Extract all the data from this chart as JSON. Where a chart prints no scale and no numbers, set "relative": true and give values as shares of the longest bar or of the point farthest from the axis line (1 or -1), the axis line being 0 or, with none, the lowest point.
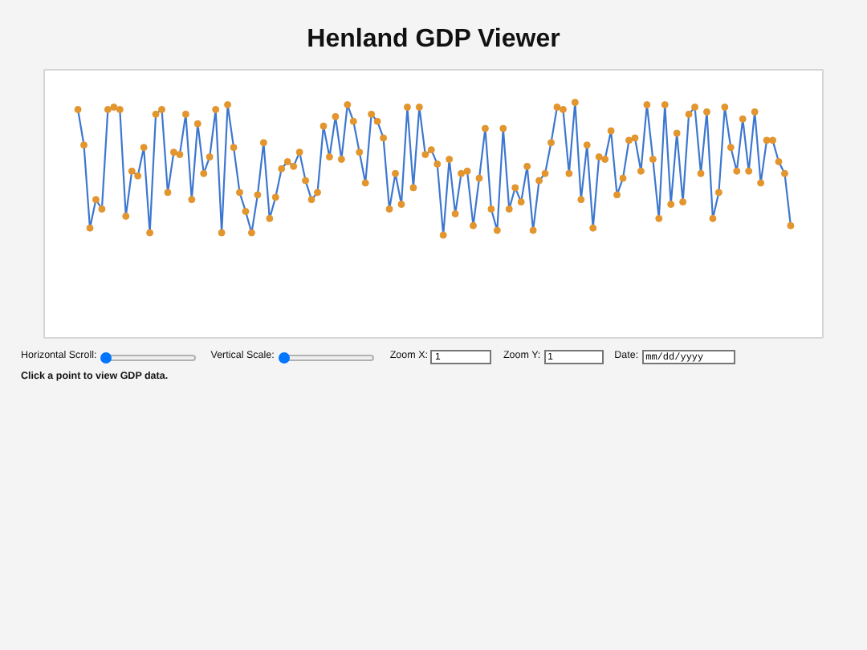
{
  "chart_data": {
    "type": "line",
    "title": "Henland GDP Viewer",
    "annotations": [
      "Horizontal Scroll:",
      "Vertical Scale:",
      "Zoom X:",
      "1",
      "Zoom Y:",
      "1",
      "Date:",
      "mm/dd/yyyy",
      "Click a point to view GDP data."
    ],
    "categories": [
      null,
      null,
      null,
      null,
      null,
      null,
      null,
      null,
      null,
      null,
      null,
      null,
      null,
      null,
      null,
      null,
      null,
      null,
      null,
      null,
      null,
      null,
      null,
      null,
      null,
      null,
      null,
      null,
      null,
      null,
      null,
      null,
      null,
      null,
      null,
      null,
      null,
      null,
      null,
      null,
      null,
      null,
      null,
      null,
      null,
      null,
      null,
      null,
      null,
      null,
      null,
      null,
      null,
      null,
      null,
      null,
      null,
      null,
      null,
      null,
      null,
      null,
      null,
      null,
      null,
      null,
      null,
      null,
      null,
      null,
      null,
      null,
      null,
      null,
      null,
      null,
      null,
      null,
      null,
      null,
      null,
      null,
      null,
      null,
      null,
      null,
      null,
      null,
      null,
      null,
      null,
      null,
      null,
      null,
      null,
      null,
      null,
      null,
      null,
      null,
      null,
      null,
      null,
      null,
      null,
      null,
      null,
      null,
      null,
      null,
      null,
      null,
      null,
      null,
      null,
      null,
      null,
      null,
      null,
      null
    ],
    "relative": true,
    "tick_labels": false,
    "marker": "circle",
    "line_style": "solid",
    "series": [
      {
        "color": "#3d77cf",
        "colors": [
          "#e3952e",
          "#e3952e",
          "#e3952e",
          "#e3952e",
          "#e3952e",
          "#e3952e",
          "#e3952e",
          "#e3952e",
          "#e3952e",
          "#e3952e",
          "#e3952e",
          "#e3952e",
          "#e3952e",
          "#e3952e",
          "#e3952e",
          "#e3952e",
          "#e3952e",
          "#e3952e",
          "#e3952e",
          "#e3952e",
          "#e3952e",
          "#e3952e",
          "#e3952e",
          "#e3952e",
          "#e3952e",
          "#e3952e",
          "#e3952e",
          "#e3952e",
          "#e3952e",
          "#e3952e",
          "#e3952e",
          "#e3952e",
          "#e3952e",
          "#e3952e",
          "#e3952e",
          "#e3952e",
          "#e3952e",
          "#e3952e",
          "#e3952e",
          "#e3952e",
          "#e3952e",
          "#e3952e",
          "#e3952e",
          "#e3952e",
          "#e3952e",
          "#e3952e",
          "#e3952e",
          "#e3952e",
          "#e3952e",
          "#e3952e",
          "#e3952e",
          "#e3952e",
          "#e3952e",
          "#e3952e",
          "#e3952e",
          "#e3952e",
          "#e3952e",
          "#e3952e",
          "#e3952e",
          "#e3952e",
          "#e3952e",
          "#e3952e",
          "#e3952e",
          "#e3952e",
          "#e3952e",
          "#e3952e",
          "#e3952e",
          "#e3952e",
          "#e3952e",
          "#e3952e",
          "#e3952e",
          "#e3952e",
          "#e3952e",
          "#e3952e",
          "#e3952e",
          "#e3952e",
          "#e3952e",
          "#e3952e",
          "#e3952e",
          "#e3952e",
          "#e3952e",
          "#e3952e",
          "#e3952e",
          "#e3952e",
          "#e3952e",
          "#e3952e",
          "#e3952e",
          "#e3952e",
          "#e3952e",
          "#e3952e",
          "#e3952e",
          "#e3952e",
          "#e3952e",
          "#e3952e",
          "#e3952e",
          "#e3952e",
          "#e3952e",
          "#e3952e",
          "#e3952e",
          "#e3952e",
          "#e3952e",
          "#e3952e",
          "#e3952e",
          "#e3952e",
          "#e3952e",
          "#e3952e",
          "#e3952e",
          "#e3952e",
          "#e3952e",
          "#e3952e",
          "#e3952e",
          "#e3952e",
          "#e3952e",
          "#e3952e",
          "#e3952e",
          "#e3952e",
          "#e3952e",
          "#e3952e",
          "#e3952e",
          "#e3952e"
        ],
        "values": [
          0.97,
          0.82,
          0.47,
          0.59,
          0.55,
          0.97,
          0.98,
          0.97,
          0.52,
          0.71,
          0.69,
          0.81,
          0.45,
          0.95,
          0.97,
          0.62,
          0.79,
          0.78,
          0.95,
          0.59,
          0.91,
          0.7,
          0.77,
          0.97,
          0.45,
          0.99,
          0.81,
          0.62,
          0.54,
          0.45,
          0.61,
          0.83,
          0.51,
          0.6,
          0.72,
          0.75,
          0.73,
          0.79,
          0.67,
          0.59,
          0.62,
          0.9,
          0.77,
          0.94,
          0.76,
          0.99,
          0.92,
          0.79,
          0.66,
          0.95,
          0.92,
          0.85,
          0.55,
          0.7,
          0.57,
          0.98,
          0.64,
          0.98,
          0.78,
          0.8,
          0.74,
          0.44,
          0.76,
          0.53,
          0.7,
          0.71,
          0.48,
          0.68,
          0.89,
          0.55,
          0.46,
          0.89,
          0.55,
          0.64,
          0.58,
          0.73,
          0.46,
          0.67,
          0.7,
          0.83,
          0.98,
          0.97,
          0.7,
          1.0,
          0.59,
          0.82,
          0.47,
          0.77,
          0.76,
          0.88,
          0.61,
          0.68,
          0.84,
          0.85,
          0.71,
          0.99,
          0.76,
          0.51,
          0.99,
          0.57,
          0.87,
          0.58,
          0.95,
          0.98,
          0.7,
          0.96,
          0.51,
          0.62,
          0.98,
          0.81,
          0.71,
          0.93,
          0.71,
          0.96,
          0.66,
          0.84,
          0.84,
          0.75,
          0.7,
          0.48
        ]
      }
    ]
  }
}
